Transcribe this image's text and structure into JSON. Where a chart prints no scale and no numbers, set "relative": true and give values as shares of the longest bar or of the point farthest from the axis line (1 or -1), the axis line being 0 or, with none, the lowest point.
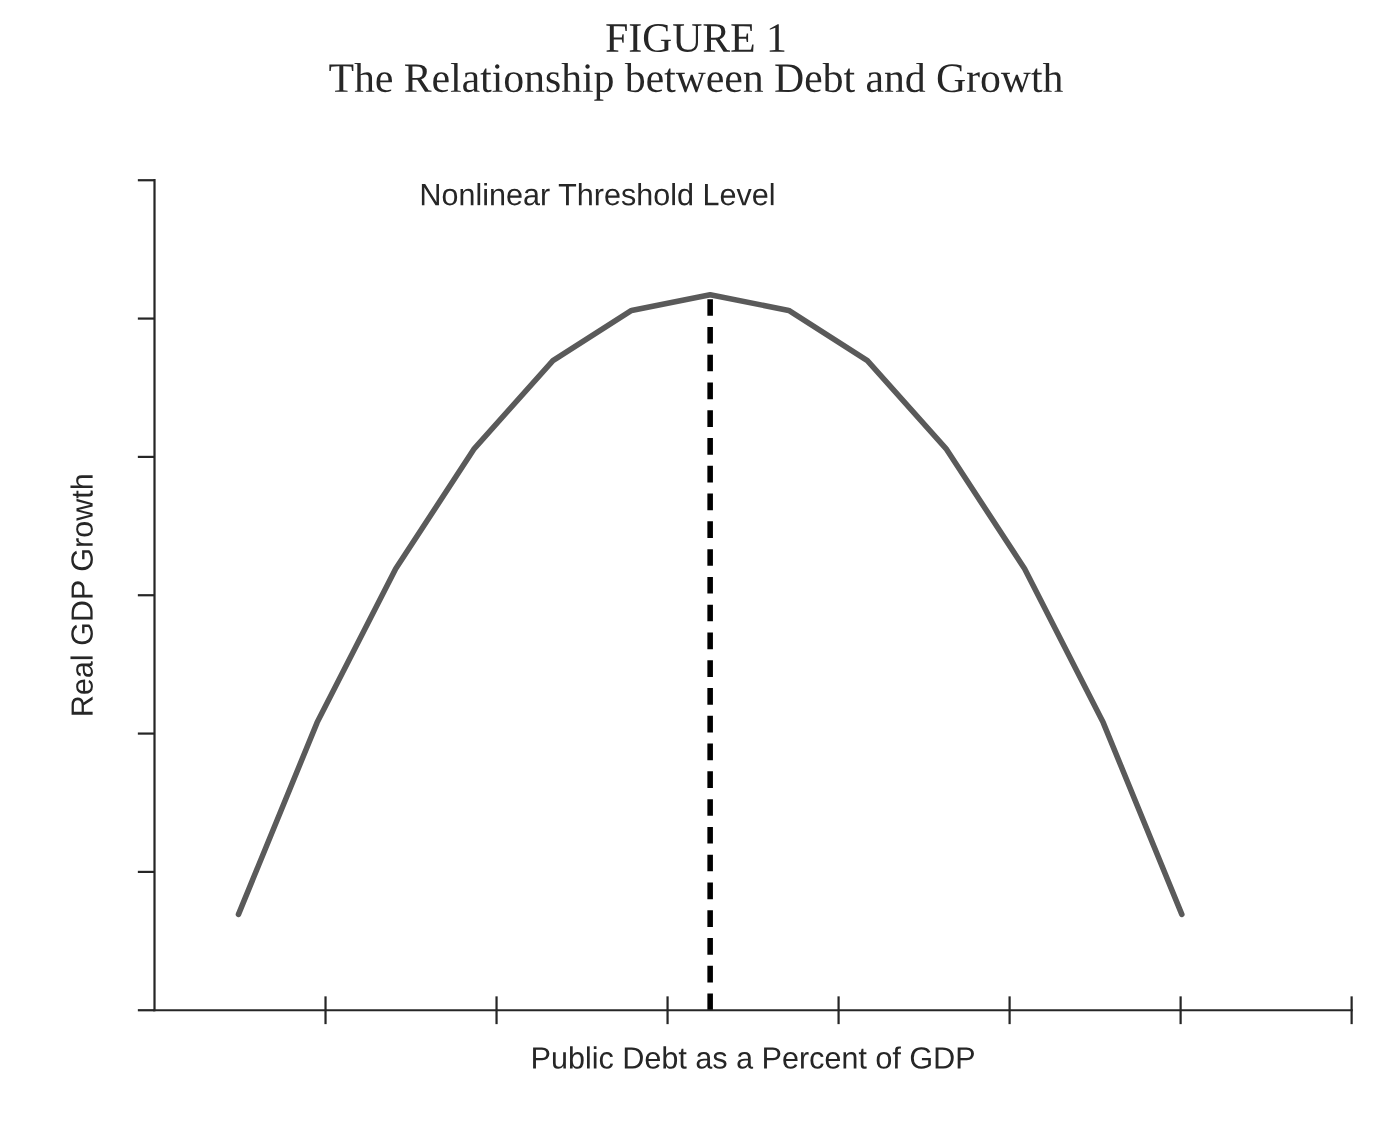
{
  "chart_data": {
    "type": "line",
    "title": "FIGURE 1",
    "subtitle": "The Relationship between Debt and Growth",
    "xlabel": "Public Debt as a Percent of GDP",
    "ylabel": "Real GDP Growth",
    "relative": true,
    "grid": false,
    "legend": false,
    "tick_labels": false,
    "annotations": [
      "Nonlinear Threshold Level"
    ],
    "categories": [
      null,
      null,
      null,
      null,
      null,
      null,
      null,
      null,
      null,
      null,
      null,
      null,
      null
    ],
    "series": [
      {
        "color": "#5a5a5a",
        "values": [
          0.134,
          0.402,
          0.617,
          0.785,
          0.908,
          0.978,
          1,
          0.978,
          0.908,
          0.785,
          0.617,
          0.402,
          0.134
        ]
      }
    ]
  }
}
